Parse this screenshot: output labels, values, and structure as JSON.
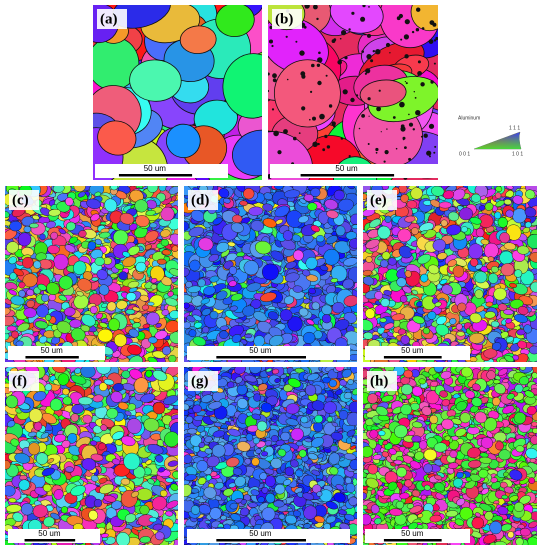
{
  "figure": {
    "panels": [
      {
        "label": "(a)",
        "scale_bar": "50 um"
      },
      {
        "label": "(b)",
        "scale_bar": "50 um"
      },
      {
        "label": "(c)",
        "scale_bar": "50 um"
      },
      {
        "label": "(d)",
        "scale_bar": "50 um"
      },
      {
        "label": "(e)",
        "scale_bar": "50 um"
      },
      {
        "label": "(f)",
        "scale_bar": "50 um"
      },
      {
        "label": "(g)",
        "scale_bar": "50 um"
      },
      {
        "label": "(h)",
        "scale_bar": "50 um"
      }
    ],
    "legend": {
      "title": "Aluminum",
      "corner_111": "1 1 1",
      "corner_001": "0 0 1",
      "corner_101": "1 0 1"
    }
  }
}
